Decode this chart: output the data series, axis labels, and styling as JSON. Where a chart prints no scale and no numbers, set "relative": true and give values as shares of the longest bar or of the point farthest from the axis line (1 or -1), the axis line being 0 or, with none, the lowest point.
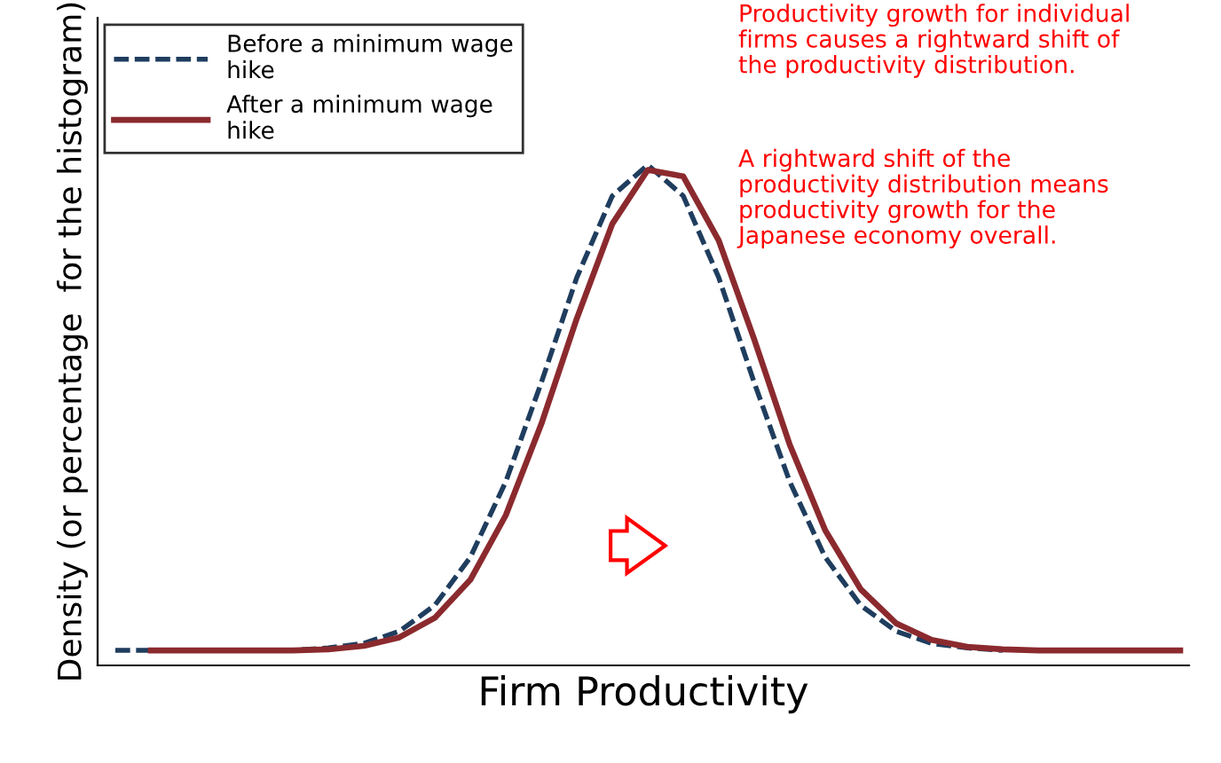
{
  "chart_data": {
    "type": "line",
    "relative": true,
    "tick_labels": false,
    "grid": false,
    "legend": "top left",
    "marker": "none",
    "xlabel": "Firm Productivity",
    "ylabel": "Density (or percentage  for the histogram)",
    "annotations": [
      "Productivity growth for individual\nfirms causes a rightward shift of\nthe productivity distribution.",
      "A rightward shift of the\nproductivity distribution means\nproductivity growth for the\nJapanese economy overall."
    ],
    "categories": [
      null,
      null,
      null,
      null,
      null,
      null,
      null,
      null,
      null,
      null,
      null,
      null,
      null,
      null,
      null,
      null,
      null,
      null,
      null,
      null,
      null,
      null,
      null,
      null,
      null,
      null,
      null,
      null,
      null,
      null,
      null
    ],
    "series": [
      {
        "name": "Before a minimum wage\nhike",
        "color": "#1f3d5e",
        "line_style": "dashed",
        "values": [
          0.03,
          0.03,
          0.03,
          0.03,
          0.03,
          0.03,
          0.035,
          0.044,
          0.068,
          0.12,
          0.216,
          0.367,
          0.565,
          0.775,
          0.938,
          1.0,
          0.938,
          0.775,
          0.565,
          0.367,
          0.216,
          0.12,
          0.068,
          0.044,
          0.035,
          0.03,
          null,
          null,
          null,
          null,
          null
        ]
      },
      {
        "name": "After a minimum wage\nhike",
        "color": "#8b2a2e",
        "line_style": "solid",
        "values": [
          null,
          0.03,
          0.03,
          0.03,
          0.03,
          0.03,
          0.032,
          0.039,
          0.056,
          0.095,
          0.171,
          0.3,
          0.482,
          0.693,
          0.882,
          0.99,
          0.977,
          0.849,
          0.651,
          0.441,
          0.27,
          0.152,
          0.084,
          0.051,
          0.037,
          0.032,
          0.03,
          0.03,
          0.03,
          0.03,
          0.03
        ]
      }
    ]
  }
}
